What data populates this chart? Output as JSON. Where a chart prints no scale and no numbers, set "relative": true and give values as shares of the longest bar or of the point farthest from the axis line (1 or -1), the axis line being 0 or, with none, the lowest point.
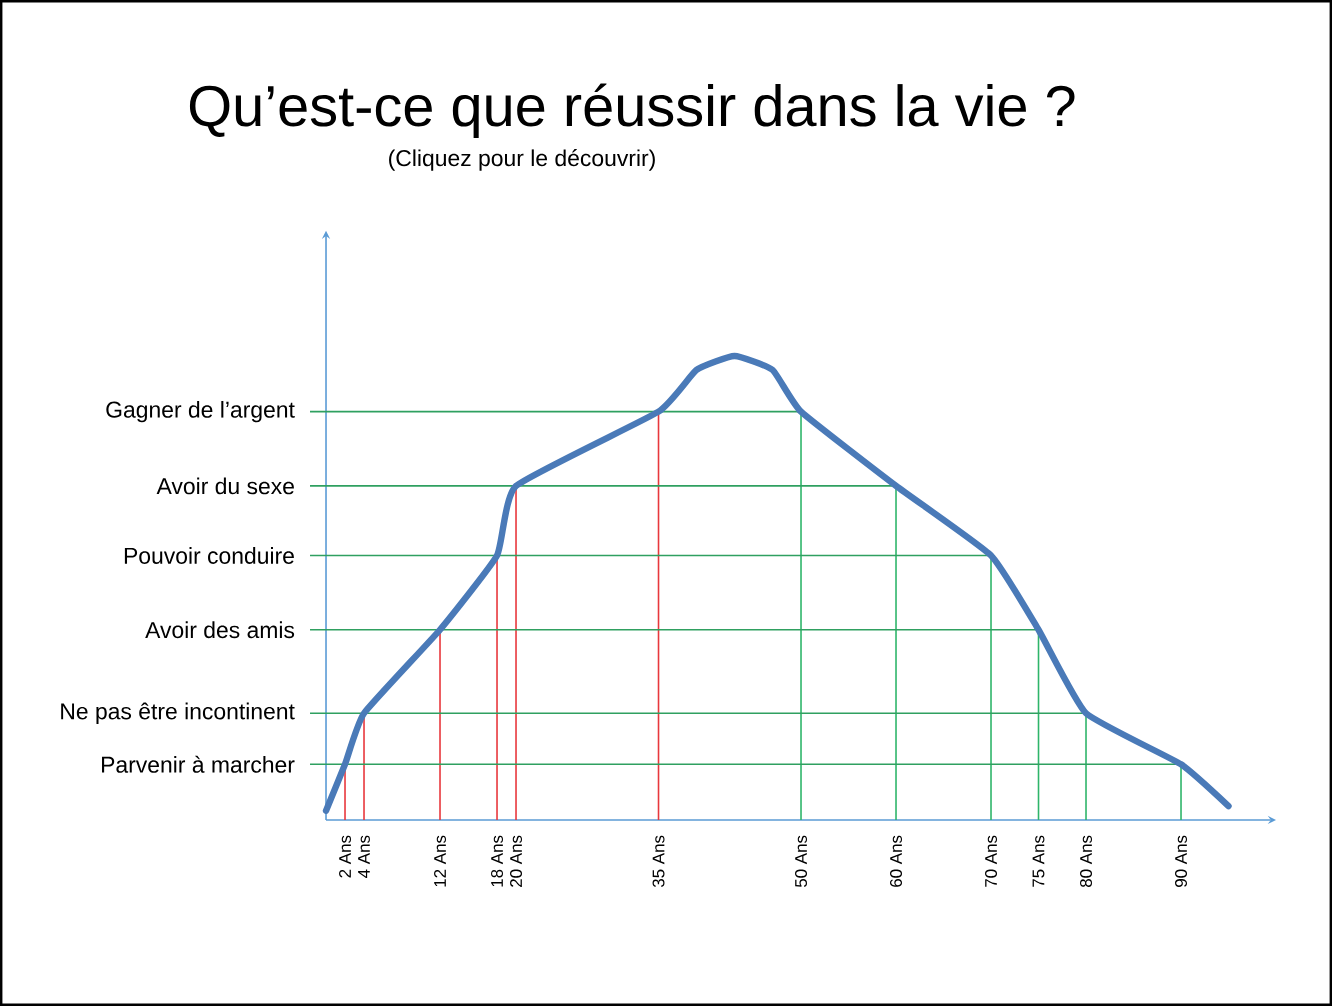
{
  "chart_data": {
    "type": "line",
    "title": "Qu’est-ce que réussir dans la vie ?",
    "subtitle": "(Cliquez pour le découvrir)",
    "xlim": [
      0,
      100
    ],
    "relative": true,
    "marker": "none",
    "xticks": [
      {
        "value": 2,
        "label": "2 Ans"
      },
      {
        "value": 4,
        "label": "4 Ans"
      },
      {
        "value": 12,
        "label": "12 Ans"
      },
      {
        "value": 18,
        "label": "18 Ans"
      },
      {
        "value": 20,
        "label": "20 Ans"
      },
      {
        "value": 35,
        "label": "35 Ans"
      },
      {
        "value": 50,
        "label": "50 Ans"
      },
      {
        "value": 60,
        "label": "60 Ans"
      },
      {
        "value": 70,
        "label": "70 Ans"
      },
      {
        "value": 75,
        "label": "75 Ans"
      },
      {
        "value": 80,
        "label": "80 Ans"
      },
      {
        "value": 90,
        "label": "90 Ans"
      }
    ],
    "series": [
      {
        "color": "#4a7ab8",
        "x": [
          0,
          2,
          4,
          12,
          18,
          20,
          35,
          39,
          43,
          47,
          50,
          60,
          70,
          75,
          80,
          90,
          95
        ],
        "values": [
          0.02,
          0.12,
          0.23,
          0.41,
          0.57,
          0.72,
          0.88,
          0.97,
          1.0,
          0.97,
          0.88,
          0.72,
          0.57,
          0.41,
          0.23,
          0.12,
          0.03
        ]
      }
    ],
    "ref_lines": [
      {
        "axis": "x",
        "value": 2,
        "color": "#e8383d"
      },
      {
        "axis": "x",
        "value": 4,
        "color": "#e8383d"
      },
      {
        "axis": "x",
        "value": 12,
        "color": "#e8383d"
      },
      {
        "axis": "x",
        "value": 18,
        "color": "#e8383d"
      },
      {
        "axis": "x",
        "value": 20,
        "color": "#e8383d"
      },
      {
        "axis": "x",
        "value": 35,
        "color": "#e8383d"
      },
      {
        "axis": "x",
        "value": 50,
        "color": "#2fb56a"
      },
      {
        "axis": "x",
        "value": 60,
        "color": "#2fb56a"
      },
      {
        "axis": "x",
        "value": 70,
        "color": "#2fb56a"
      },
      {
        "axis": "x",
        "value": 75,
        "color": "#2fb56a"
      },
      {
        "axis": "x",
        "value": 80,
        "color": "#2fb56a"
      },
      {
        "axis": "x",
        "value": 90,
        "color": "#2fb56a"
      },
      {
        "axis": "y",
        "value": 0.12,
        "label": "Parvenir à marcher",
        "color": "#2fa060"
      },
      {
        "axis": "y",
        "value": 0.23,
        "label": "Ne pas être incontinent",
        "color": "#2fa060"
      },
      {
        "axis": "y",
        "value": 0.41,
        "label": "Avoir des amis",
        "color": "#2fa060"
      },
      {
        "axis": "y",
        "value": 0.57,
        "label": "Pouvoir conduire",
        "color": "#2fa060"
      },
      {
        "axis": "y",
        "value": 0.72,
        "label": "Avoir du sexe",
        "color": "#2fa060"
      },
      {
        "axis": "y",
        "value": 0.88,
        "label": "Gagner de l’argent",
        "color": "#2fa060"
      }
    ]
  }
}
